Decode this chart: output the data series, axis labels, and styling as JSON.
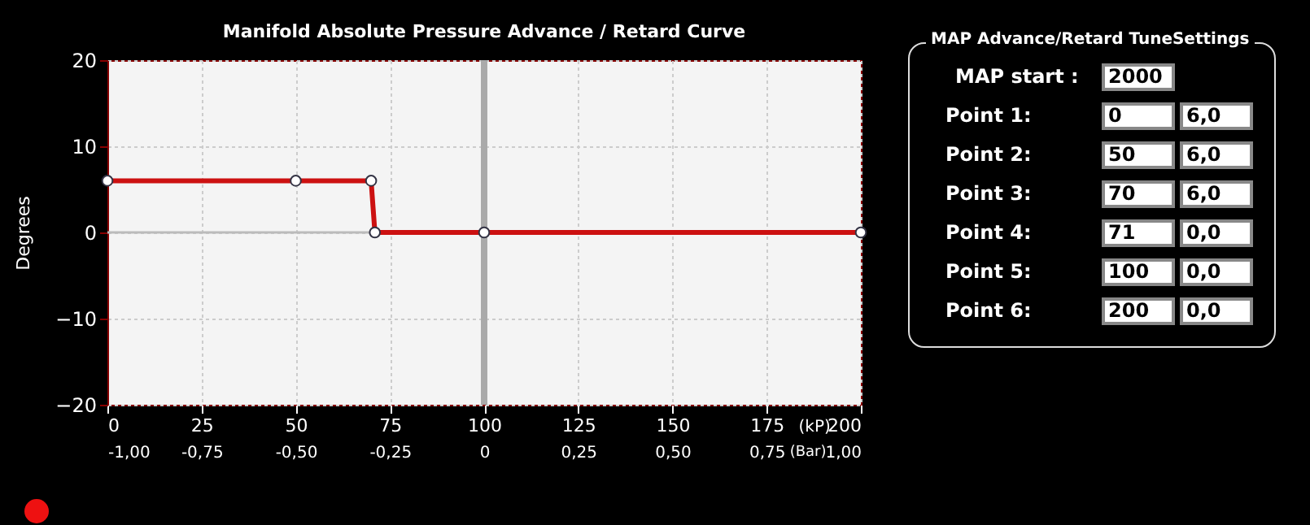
{
  "chart_data": [
    {
      "type": "line",
      "title": "Manifold Absolute Pressure Advance / Retard Curve",
      "xlabel": "(kP)",
      "ylabel": "Degrees",
      "x2label": "(Bar)",
      "x": [
        0,
        50,
        70,
        71,
        100,
        200
      ],
      "series": [
        {
          "color": "#cc1111",
          "values": [
            6,
            6,
            6,
            0,
            0,
            0
          ]
        }
      ],
      "xlim": [
        0,
        200
      ],
      "xticks": [
        0,
        25,
        50,
        75,
        100,
        125,
        150,
        175,
        200
      ],
      "x2lim": [
        -1,
        1
      ],
      "x2ticks": [
        {
          "value": -1,
          "label": "-1,00"
        },
        {
          "value": -0.75,
          "label": "-0,75"
        },
        {
          "value": -0.5,
          "label": "-0,50"
        },
        {
          "value": -0.25,
          "label": "-0,25"
        },
        {
          "value": 0,
          "label": "0"
        },
        {
          "value": 0.25,
          "label": "0,25"
        },
        {
          "value": 0.5,
          "label": "0,50"
        },
        {
          "value": 0.75,
          "label": "0,75"
        },
        {
          "value": 1,
          "label": "1,00"
        }
      ],
      "ylim": [
        -20,
        20
      ],
      "yticks": [
        -20,
        -10,
        0,
        10,
        20
      ],
      "ref_lines": [
        {
          "axis": "y",
          "value": 0,
          "color": "#bbbbbb"
        },
        {
          "axis": "x",
          "value": 100,
          "color": "#aaaaaa"
        }
      ],
      "grid": true,
      "marker": "circle",
      "line_style": "solid",
      "legend": false
    },
    {
      "type": "other",
      "title": "MAP Advance/Retard TuneSettings",
      "annotations": [
        "MAP start :",
        "2000",
        "Point 1:",
        "0",
        "6,0",
        "Point 2:",
        "50",
        "6,0",
        "Point 3:",
        "70",
        "6,0",
        "Point 4:",
        "71",
        "0,0",
        "Point 5:",
        "100",
        "0,0",
        "Point 6:",
        "200",
        "0,0"
      ]
    }
  ]
}
